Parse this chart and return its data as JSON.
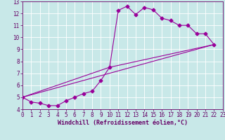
{
  "title": "",
  "xlabel": "Windchill (Refroidissement éolien,°C)",
  "xlim": [
    0,
    23
  ],
  "ylim": [
    4,
    13
  ],
  "xticks": [
    0,
    1,
    2,
    3,
    4,
    5,
    6,
    7,
    8,
    9,
    10,
    11,
    12,
    13,
    14,
    15,
    16,
    17,
    18,
    19,
    20,
    21,
    22,
    23
  ],
  "yticks": [
    4,
    5,
    6,
    7,
    8,
    9,
    10,
    11,
    12,
    13
  ],
  "bg_color": "#c8e8e8",
  "grid_color": "#ffffff",
  "line_color": "#990099",
  "line1_x": [
    0,
    1,
    2,
    3,
    4,
    5,
    6,
    7,
    8,
    9,
    10,
    11,
    12,
    13,
    14,
    15,
    16,
    17,
    18,
    19,
    20,
    21,
    22
  ],
  "line1_y": [
    5.0,
    4.6,
    4.5,
    4.3,
    4.3,
    4.7,
    5.0,
    5.3,
    5.5,
    6.4,
    7.5,
    12.25,
    12.6,
    11.9,
    12.5,
    12.3,
    11.6,
    11.4,
    11.0,
    11.0,
    10.3,
    10.3,
    9.4
  ],
  "line2_x": [
    0,
    22
  ],
  "line2_y": [
    5.0,
    9.4
  ],
  "line3_x": [
    0,
    10,
    22
  ],
  "line3_y": [
    5.0,
    7.5,
    9.4
  ],
  "marker": "D",
  "markersize": 2.5,
  "linewidth": 0.8,
  "font_color": "#660066",
  "tick_fontsize": 5.5,
  "xlabel_fontsize": 6.0
}
